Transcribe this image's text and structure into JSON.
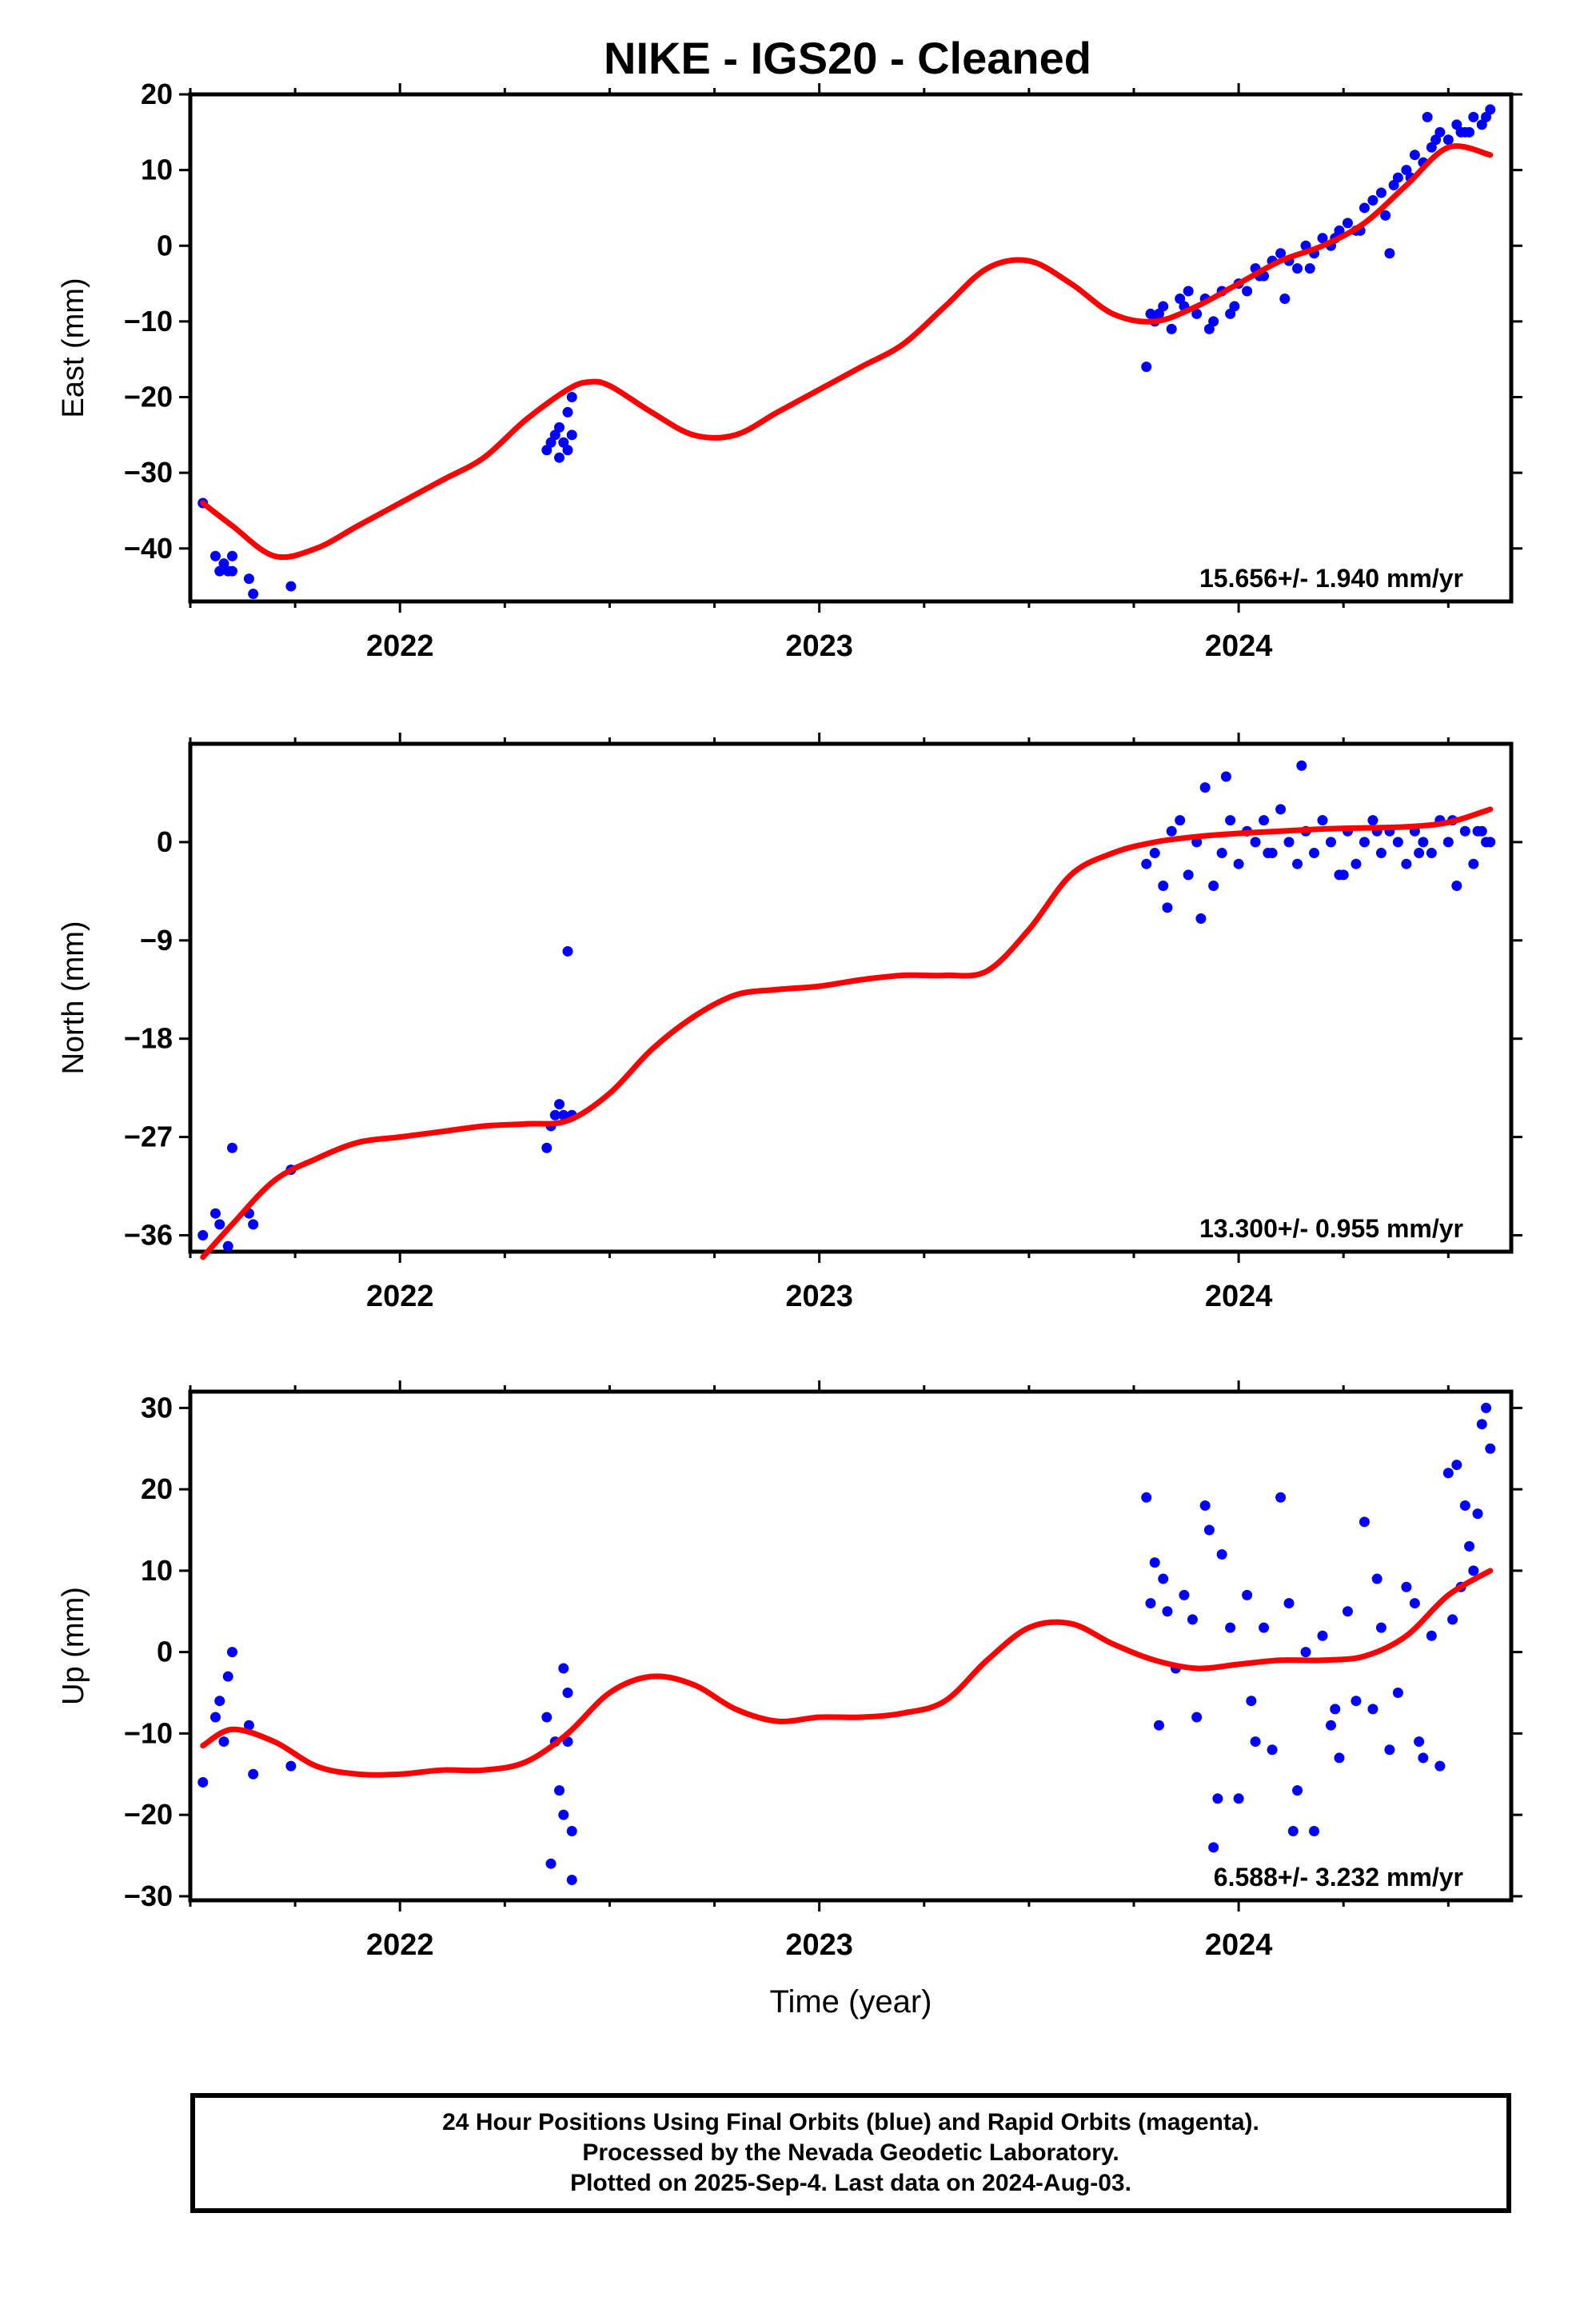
{
  "title": "NIKE  - IGS20 - Cleaned",
  "footer": {
    "line1": "24 Hour Positions Using Final Orbits (blue) and Rapid Orbits (magenta).",
    "line2": "Processed by the Nevada Geodetic Laboratory.",
    "line3": "Plotted on 2025-Sep-4. Last data on 2024-Aug-03."
  },
  "colors": {
    "points": "#0000ff",
    "model": "#ff0000",
    "axis": "#000000"
  },
  "chart_data": [
    {
      "type": "scatter",
      "ylabel": "East (mm)",
      "xlabel": "",
      "xlim": [
        2021.5,
        2024.65
      ],
      "ylim": [
        -47,
        20
      ],
      "yticks": [
        20,
        10,
        0,
        -10,
        -20,
        -30,
        -40
      ],
      "xticks": [
        2022,
        2023,
        2024
      ],
      "rate": "15.656+/- 1.940 mm/yr",
      "points_x": [
        2021.53,
        2021.56,
        2021.57,
        2021.58,
        2021.59,
        2021.6,
        2021.6,
        2021.64,
        2021.65,
        2021.74,
        2022.35,
        2022.36,
        2022.37,
        2022.38,
        2022.38,
        2022.39,
        2022.4,
        2022.4,
        2022.41,
        2022.41,
        2023.78,
        2023.79,
        2023.8,
        2023.82,
        2023.84,
        2023.86,
        2023.88,
        2023.9,
        2023.92,
        2023.94,
        2023.96,
        2023.98,
        2024.0,
        2024.02,
        2024.04,
        2024.06,
        2024.08,
        2024.1,
        2024.12,
        2024.14,
        2024.16,
        2024.18,
        2024.2,
        2024.22,
        2024.24,
        2024.26,
        2024.28,
        2024.3,
        2024.32,
        2024.34,
        2024.36,
        2024.37,
        2024.38,
        2024.4,
        2024.42,
        2024.44,
        2024.46,
        2024.48,
        2024.5,
        2024.52,
        2024.54,
        2024.56,
        2024.58,
        2024.6,
        2023.81,
        2023.87,
        2023.93,
        2023.99,
        2024.05,
        2024.11,
        2024.17,
        2024.23,
        2024.29,
        2024.35,
        2024.41,
        2024.47,
        2024.53,
        2024.59,
        2024.45,
        2024.55
      ],
      "points_y": [
        -34,
        -41,
        -43,
        -42,
        -43,
        -41,
        -43,
        -44,
        -46,
        -45,
        -27,
        -26,
        -25,
        -28,
        -24,
        -26,
        -22,
        -27,
        -20,
        -25,
        -16,
        -9,
        -10,
        -8,
        -11,
        -7,
        -6,
        -9,
        -7,
        -10,
        -6,
        -9,
        -5,
        -6,
        -3,
        -4,
        -2,
        -1,
        -2,
        -3,
        0,
        -1,
        1,
        0,
        2,
        3,
        2,
        5,
        6,
        7,
        -1,
        8,
        9,
        10,
        12,
        11,
        13,
        15,
        14,
        16,
        15,
        17,
        16,
        18,
        -9,
        -8,
        -11,
        -8,
        -4,
        -7,
        -3,
        1,
        2,
        4,
        9,
        14,
        15,
        17,
        17,
        15
      ],
      "model_x": [
        2021.53,
        2021.6,
        2021.7,
        2021.8,
        2021.9,
        2022.0,
        2022.1,
        2022.2,
        2022.3,
        2022.4,
        2022.45,
        2022.5,
        2022.6,
        2022.7,
        2022.8,
        2022.9,
        2023.0,
        2023.1,
        2023.2,
        2023.3,
        2023.4,
        2023.5,
        2023.6,
        2023.7,
        2023.8,
        2023.9,
        2024.0,
        2024.1,
        2024.2,
        2024.3,
        2024.4,
        2024.5,
        2024.6
      ],
      "model_y": [
        -34,
        -37,
        -41,
        -40,
        -37,
        -34,
        -31,
        -28,
        -23,
        -19,
        -18,
        -18.5,
        -22,
        -25,
        -25,
        -22,
        -19,
        -16,
        -13,
        -8,
        -3,
        -2,
        -5,
        -9,
        -10,
        -8,
        -5,
        -2,
        0,
        3,
        8,
        13,
        12
      ]
    },
    {
      "type": "scatter",
      "ylabel": "North (mm)",
      "xlabel": "",
      "xlim": [
        2021.5,
        2024.65
      ],
      "ylim": [
        -37.5,
        9
      ],
      "yticks": [
        0,
        -9,
        -18,
        -27,
        -36
      ],
      "xticks": [
        2022,
        2023,
        2024
      ],
      "rate": "13.300+/- 0.955 mm/yr",
      "points_x": [
        2021.53,
        2021.56,
        2021.57,
        2021.59,
        2021.6,
        2021.64,
        2021.65,
        2021.74,
        2022.35,
        2022.36,
        2022.37,
        2022.38,
        2022.39,
        2022.4,
        2022.41,
        2023.78,
        2023.8,
        2023.82,
        2023.84,
        2023.86,
        2023.88,
        2023.9,
        2023.92,
        2023.94,
        2023.96,
        2023.98,
        2024.0,
        2024.02,
        2024.04,
        2024.06,
        2024.08,
        2024.1,
        2024.12,
        2024.14,
        2024.16,
        2024.18,
        2024.2,
        2024.22,
        2024.24,
        2024.26,
        2024.28,
        2024.3,
        2024.32,
        2024.34,
        2024.36,
        2024.38,
        2024.4,
        2024.42,
        2024.44,
        2024.46,
        2024.48,
        2024.5,
        2024.52,
        2024.54,
        2024.56,
        2024.58,
        2024.6,
        2023.83,
        2023.91,
        2023.97,
        2024.07,
        2024.15,
        2024.25,
        2024.33,
        2024.43,
        2024.51,
        2024.57,
        2024.59
      ],
      "points_y": [
        -36,
        -34,
        -35,
        -37,
        -28,
        -34,
        -35,
        -30,
        -28,
        -26,
        -25,
        -24,
        -25,
        -10,
        -25,
        -2,
        -1,
        -4,
        1,
        2,
        -3,
        0,
        5,
        -4,
        -1,
        2,
        -2,
        1,
        0,
        2,
        -1,
        3,
        0,
        -2,
        1,
        -1,
        2,
        0,
        -3,
        1,
        -2,
        0,
        2,
        -1,
        1,
        0,
        -2,
        1,
        0,
        -1,
        2,
        0,
        -4,
        1,
        -2,
        1,
        0,
        -6,
        -7,
        6,
        -1,
        7,
        -3,
        1,
        -1,
        2,
        1,
        0
      ],
      "model_x": [
        2021.53,
        2021.6,
        2021.7,
        2021.8,
        2021.9,
        2022.0,
        2022.1,
        2022.2,
        2022.3,
        2022.4,
        2022.5,
        2022.6,
        2022.7,
        2022.8,
        2022.9,
        2023.0,
        2023.1,
        2023.2,
        2023.3,
        2023.4,
        2023.5,
        2023.6,
        2023.7,
        2023.8,
        2023.9,
        2024.0,
        2024.1,
        2024.2,
        2024.3,
        2024.4,
        2024.5,
        2024.6
      ],
      "model_y": [
        -38,
        -35,
        -31,
        -29,
        -27.5,
        -27,
        -26.5,
        -26,
        -25.8,
        -25.5,
        -23,
        -19,
        -16,
        -14,
        -13.5,
        -13.2,
        -12.6,
        -12.2,
        -12.2,
        -11.8,
        -8,
        -3,
        -1,
        0,
        0.5,
        0.8,
        1,
        1.2,
        1.3,
        1.4,
        1.8,
        3
      ]
    },
    {
      "type": "scatter",
      "ylabel": "Up (mm)",
      "xlabel": "Time (year)",
      "xlim": [
        2021.5,
        2024.65
      ],
      "ylim": [
        -30.5,
        32
      ],
      "yticks": [
        30,
        20,
        10,
        0,
        -10,
        -20,
        -30
      ],
      "xticks": [
        2022,
        2023,
        2024
      ],
      "rate": "6.588+/- 3.232 mm/yr",
      "points_x": [
        2021.53,
        2021.56,
        2021.57,
        2021.58,
        2021.59,
        2021.6,
        2021.64,
        2021.65,
        2021.74,
        2022.35,
        2022.36,
        2022.37,
        2022.38,
        2022.39,
        2022.4,
        2022.41,
        2022.41,
        2022.4,
        2022.39,
        2023.78,
        2023.79,
        2023.8,
        2023.81,
        2023.82,
        2023.83,
        2023.85,
        2023.87,
        2023.89,
        2023.9,
        2023.92,
        2023.94,
        2023.95,
        2023.96,
        2023.98,
        2024.0,
        2024.02,
        2024.04,
        2024.06,
        2024.08,
        2024.1,
        2024.12,
        2024.14,
        2024.16,
        2024.18,
        2024.2,
        2024.22,
        2024.24,
        2024.26,
        2024.28,
        2024.3,
        2024.32,
        2024.34,
        2024.36,
        2024.38,
        2024.4,
        2024.42,
        2024.44,
        2024.46,
        2024.48,
        2024.5,
        2024.52,
        2024.54,
        2024.56,
        2024.58,
        2024.6,
        2024.59,
        2024.57,
        2024.55,
        2024.53,
        2023.93,
        2024.03,
        2024.13,
        2024.23,
        2024.33,
        2024.43,
        2024.51
      ],
      "points_y": [
        -16,
        -8,
        -6,
        -11,
        -3,
        0,
        -9,
        -15,
        -14,
        -8,
        -26,
        -11,
        -17,
        -20,
        -5,
        -28,
        -22,
        -11,
        -2,
        19,
        6,
        11,
        -9,
        9,
        5,
        -2,
        7,
        4,
        -8,
        18,
        -24,
        -18,
        12,
        3,
        -18,
        7,
        -11,
        3,
        -12,
        19,
        6,
        -17,
        0,
        -22,
        2,
        -9,
        -13,
        5,
        -6,
        16,
        -7,
        3,
        -12,
        -5,
        8,
        6,
        -13,
        2,
        -14,
        22,
        23,
        18,
        10,
        28,
        25,
        30,
        17,
        13,
        8,
        15,
        -6,
        -22,
        -7,
        9,
        -11,
        4
      ],
      "model_x": [
        2021.53,
        2021.6,
        2021.7,
        2021.8,
        2021.9,
        2022.0,
        2022.1,
        2022.2,
        2022.3,
        2022.4,
        2022.5,
        2022.6,
        2022.7,
        2022.8,
        2022.9,
        2023.0,
        2023.1,
        2023.2,
        2023.3,
        2023.4,
        2023.5,
        2023.6,
        2023.7,
        2023.8,
        2023.9,
        2024.0,
        2024.1,
        2024.2,
        2024.3,
        2024.4,
        2024.5,
        2024.6
      ],
      "model_y": [
        -11.5,
        -9.5,
        -11,
        -14,
        -15,
        -15,
        -14.5,
        -14.5,
        -13.5,
        -10,
        -5,
        -3,
        -4,
        -7,
        -8.5,
        -8,
        -8,
        -7.5,
        -6,
        -1,
        3,
        3.5,
        1,
        -1,
        -2,
        -1.5,
        -1,
        -1,
        -0.5,
        2,
        7,
        10
      ]
    }
  ]
}
